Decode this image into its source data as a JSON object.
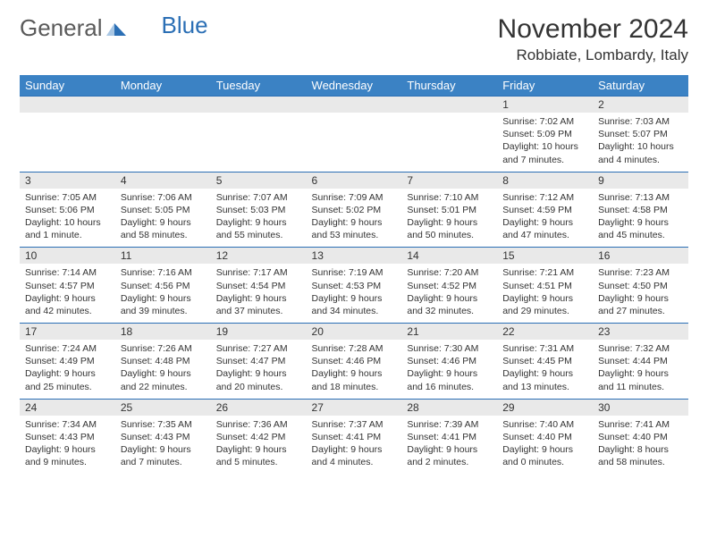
{
  "logo": {
    "text1": "General",
    "text2": "Blue"
  },
  "title": "November 2024",
  "location": "Robbiate, Lombardy, Italy",
  "colors": {
    "header_bg": "#3b82c4",
    "header_text": "#ffffff",
    "daynum_bg": "#e9e9e9",
    "border": "#2b6fb5",
    "body_text": "#333333",
    "logo_gray": "#5a5a5a",
    "logo_blue": "#2b6fb5"
  },
  "day_names": [
    "Sunday",
    "Monday",
    "Tuesday",
    "Wednesday",
    "Thursday",
    "Friday",
    "Saturday"
  ],
  "weeks": [
    [
      {
        "n": "",
        "sr": "",
        "ss": "",
        "dl": ""
      },
      {
        "n": "",
        "sr": "",
        "ss": "",
        "dl": ""
      },
      {
        "n": "",
        "sr": "",
        "ss": "",
        "dl": ""
      },
      {
        "n": "",
        "sr": "",
        "ss": "",
        "dl": ""
      },
      {
        "n": "",
        "sr": "",
        "ss": "",
        "dl": ""
      },
      {
        "n": "1",
        "sr": "Sunrise: 7:02 AM",
        "ss": "Sunset: 5:09 PM",
        "dl": "Daylight: 10 hours and 7 minutes."
      },
      {
        "n": "2",
        "sr": "Sunrise: 7:03 AM",
        "ss": "Sunset: 5:07 PM",
        "dl": "Daylight: 10 hours and 4 minutes."
      }
    ],
    [
      {
        "n": "3",
        "sr": "Sunrise: 7:05 AM",
        "ss": "Sunset: 5:06 PM",
        "dl": "Daylight: 10 hours and 1 minute."
      },
      {
        "n": "4",
        "sr": "Sunrise: 7:06 AM",
        "ss": "Sunset: 5:05 PM",
        "dl": "Daylight: 9 hours and 58 minutes."
      },
      {
        "n": "5",
        "sr": "Sunrise: 7:07 AM",
        "ss": "Sunset: 5:03 PM",
        "dl": "Daylight: 9 hours and 55 minutes."
      },
      {
        "n": "6",
        "sr": "Sunrise: 7:09 AM",
        "ss": "Sunset: 5:02 PM",
        "dl": "Daylight: 9 hours and 53 minutes."
      },
      {
        "n": "7",
        "sr": "Sunrise: 7:10 AM",
        "ss": "Sunset: 5:01 PM",
        "dl": "Daylight: 9 hours and 50 minutes."
      },
      {
        "n": "8",
        "sr": "Sunrise: 7:12 AM",
        "ss": "Sunset: 4:59 PM",
        "dl": "Daylight: 9 hours and 47 minutes."
      },
      {
        "n": "9",
        "sr": "Sunrise: 7:13 AM",
        "ss": "Sunset: 4:58 PM",
        "dl": "Daylight: 9 hours and 45 minutes."
      }
    ],
    [
      {
        "n": "10",
        "sr": "Sunrise: 7:14 AM",
        "ss": "Sunset: 4:57 PM",
        "dl": "Daylight: 9 hours and 42 minutes."
      },
      {
        "n": "11",
        "sr": "Sunrise: 7:16 AM",
        "ss": "Sunset: 4:56 PM",
        "dl": "Daylight: 9 hours and 39 minutes."
      },
      {
        "n": "12",
        "sr": "Sunrise: 7:17 AM",
        "ss": "Sunset: 4:54 PM",
        "dl": "Daylight: 9 hours and 37 minutes."
      },
      {
        "n": "13",
        "sr": "Sunrise: 7:19 AM",
        "ss": "Sunset: 4:53 PM",
        "dl": "Daylight: 9 hours and 34 minutes."
      },
      {
        "n": "14",
        "sr": "Sunrise: 7:20 AM",
        "ss": "Sunset: 4:52 PM",
        "dl": "Daylight: 9 hours and 32 minutes."
      },
      {
        "n": "15",
        "sr": "Sunrise: 7:21 AM",
        "ss": "Sunset: 4:51 PM",
        "dl": "Daylight: 9 hours and 29 minutes."
      },
      {
        "n": "16",
        "sr": "Sunrise: 7:23 AM",
        "ss": "Sunset: 4:50 PM",
        "dl": "Daylight: 9 hours and 27 minutes."
      }
    ],
    [
      {
        "n": "17",
        "sr": "Sunrise: 7:24 AM",
        "ss": "Sunset: 4:49 PM",
        "dl": "Daylight: 9 hours and 25 minutes."
      },
      {
        "n": "18",
        "sr": "Sunrise: 7:26 AM",
        "ss": "Sunset: 4:48 PM",
        "dl": "Daylight: 9 hours and 22 minutes."
      },
      {
        "n": "19",
        "sr": "Sunrise: 7:27 AM",
        "ss": "Sunset: 4:47 PM",
        "dl": "Daylight: 9 hours and 20 minutes."
      },
      {
        "n": "20",
        "sr": "Sunrise: 7:28 AM",
        "ss": "Sunset: 4:46 PM",
        "dl": "Daylight: 9 hours and 18 minutes."
      },
      {
        "n": "21",
        "sr": "Sunrise: 7:30 AM",
        "ss": "Sunset: 4:46 PM",
        "dl": "Daylight: 9 hours and 16 minutes."
      },
      {
        "n": "22",
        "sr": "Sunrise: 7:31 AM",
        "ss": "Sunset: 4:45 PM",
        "dl": "Daylight: 9 hours and 13 minutes."
      },
      {
        "n": "23",
        "sr": "Sunrise: 7:32 AM",
        "ss": "Sunset: 4:44 PM",
        "dl": "Daylight: 9 hours and 11 minutes."
      }
    ],
    [
      {
        "n": "24",
        "sr": "Sunrise: 7:34 AM",
        "ss": "Sunset: 4:43 PM",
        "dl": "Daylight: 9 hours and 9 minutes."
      },
      {
        "n": "25",
        "sr": "Sunrise: 7:35 AM",
        "ss": "Sunset: 4:43 PM",
        "dl": "Daylight: 9 hours and 7 minutes."
      },
      {
        "n": "26",
        "sr": "Sunrise: 7:36 AM",
        "ss": "Sunset: 4:42 PM",
        "dl": "Daylight: 9 hours and 5 minutes."
      },
      {
        "n": "27",
        "sr": "Sunrise: 7:37 AM",
        "ss": "Sunset: 4:41 PM",
        "dl": "Daylight: 9 hours and 4 minutes."
      },
      {
        "n": "28",
        "sr": "Sunrise: 7:39 AM",
        "ss": "Sunset: 4:41 PM",
        "dl": "Daylight: 9 hours and 2 minutes."
      },
      {
        "n": "29",
        "sr": "Sunrise: 7:40 AM",
        "ss": "Sunset: 4:40 PM",
        "dl": "Daylight: 9 hours and 0 minutes."
      },
      {
        "n": "30",
        "sr": "Sunrise: 7:41 AM",
        "ss": "Sunset: 4:40 PM",
        "dl": "Daylight: 8 hours and 58 minutes."
      }
    ]
  ]
}
